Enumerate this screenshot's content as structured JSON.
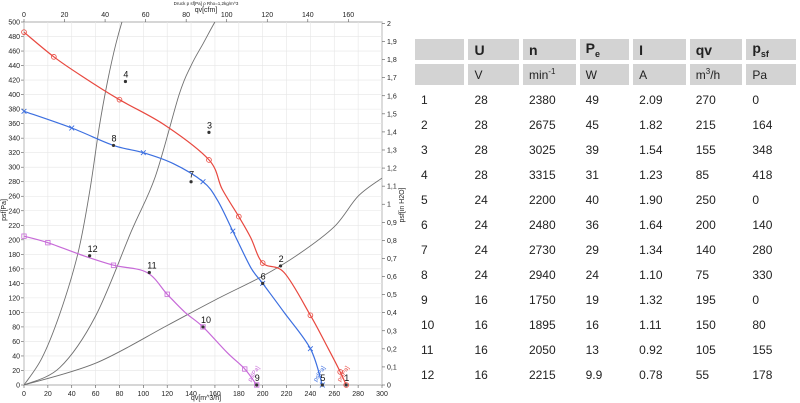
{
  "chart_data": {
    "type": "line",
    "title": "Druck p sf[Pa] ρ Rho=1,2kg/m^3",
    "x_bottom": {
      "label": "qv[m^3/h]",
      "range": [
        0,
        300
      ],
      "ticks": [
        0,
        20,
        40,
        60,
        80,
        100,
        120,
        140,
        160,
        180,
        200,
        220,
        240,
        260,
        280,
        300
      ]
    },
    "x_top": {
      "label": "qv[cfm]",
      "range": [
        0,
        176.6
      ],
      "ticks": [
        0,
        20,
        40,
        60,
        80,
        100,
        120,
        140,
        160
      ]
    },
    "y_left": {
      "label": "psf[Pa]",
      "range": [
        0,
        500
      ],
      "ticks": [
        0,
        20,
        40,
        60,
        80,
        100,
        120,
        140,
        160,
        180,
        200,
        220,
        240,
        260,
        280,
        300,
        320,
        340,
        360,
        380,
        400,
        420,
        440,
        460,
        480,
        500
      ]
    },
    "y_right": {
      "label": "psf[in H2O]",
      "range": [
        0,
        2.008
      ],
      "ticks": [
        "0",
        "0,1",
        "0,2",
        "0,3",
        "0,4",
        "0,5",
        "0,6",
        "0,7",
        "0,8",
        "0,9",
        "1",
        "1,1",
        "1,2",
        "1,3",
        "1,4",
        "1,5",
        "1,6",
        "1,7",
        "1,8",
        "1,9",
        "2"
      ]
    },
    "grid": true,
    "series": [
      {
        "name": "28 V",
        "color": "#e8483f",
        "marker": "circle",
        "x": [
          0,
          25,
          48,
          80,
          118,
          155,
          166,
          180,
          190,
          200,
          218,
          240,
          255,
          265,
          270
        ],
        "y": [
          486,
          452,
          426,
          393,
          358,
          310,
          270,
          232,
          203,
          168,
          155,
          96,
          50,
          18,
          0
        ]
      },
      {
        "name": "24 V",
        "color": "#3c6fe0",
        "marker": "x",
        "x": [
          0,
          40,
          75,
          100,
          125,
          150,
          162,
          175,
          190,
          200,
          218,
          240,
          250
        ],
        "y": [
          377,
          354,
          330,
          320,
          305,
          280,
          255,
          212,
          162,
          140,
          100,
          50,
          0
        ]
      },
      {
        "name": "16 V",
        "color": "#c76ad8",
        "marker": "square",
        "x": [
          0,
          20,
          50,
          75,
          103,
          120,
          135,
          150,
          170,
          185,
          195
        ],
        "y": [
          205,
          196,
          178,
          165,
          155,
          125,
          100,
          80,
          45,
          22,
          0
        ]
      }
    ],
    "system_curves": [
      {
        "x": [
          0,
          15,
          30,
          45,
          55,
          63,
          70,
          77,
          84,
          91
        ],
        "y": [
          0,
          37,
          98,
          180,
          266,
          355,
          418,
          470,
          510,
          540
        ]
      },
      {
        "x": [
          0,
          30,
          60,
          90,
          110,
          130,
          140,
          150,
          160,
          170
        ],
        "y": [
          0,
          24,
          95,
          212,
          287,
          400,
          440,
          470,
          500,
          525
        ]
      },
      {
        "x": [
          0,
          60,
          120,
          160,
          200,
          230,
          260,
          280,
          300
        ],
        "y": [
          0,
          30,
          82,
          117,
          150,
          180,
          218,
          260,
          285
        ]
      }
    ],
    "point_labels": [
      {
        "label": "1",
        "x": 270,
        "y": 0
      },
      {
        "label": "2",
        "x": 215,
        "y": 164
      },
      {
        "label": "3",
        "x": 155,
        "y": 348
      },
      {
        "label": "4",
        "x": 85,
        "y": 418
      },
      {
        "label": "5",
        "x": 250,
        "y": 0
      },
      {
        "label": "6",
        "x": 200,
        "y": 140
      },
      {
        "label": "7",
        "x": 140,
        "y": 280
      },
      {
        "label": "8",
        "x": 75,
        "y": 330
      },
      {
        "label": "9",
        "x": 195,
        "y": 0
      },
      {
        "label": "10",
        "x": 150,
        "y": 80
      },
      {
        "label": "11",
        "x": 105,
        "y": 155
      },
      {
        "label": "12",
        "x": 55,
        "y": 178
      }
    ],
    "curve_labels": [
      "ps[Pa]",
      "ps[Pa]",
      "ps[Pa]"
    ]
  },
  "table": {
    "headers": [
      "",
      "U",
      "n",
      "Pe",
      "I",
      "qv",
      "psf"
    ],
    "units": [
      "",
      "V",
      "min-1",
      "W",
      "A",
      "m3/h",
      "Pa"
    ],
    "rows": [
      [
        "1",
        "28",
        "2380",
        "49",
        "2.09",
        "270",
        "0"
      ],
      [
        "2",
        "28",
        "2675",
        "45",
        "1.82",
        "215",
        "164"
      ],
      [
        "3",
        "28",
        "3025",
        "39",
        "1.54",
        "155",
        "348"
      ],
      [
        "4",
        "28",
        "3315",
        "31",
        "1.23",
        "85",
        "418"
      ],
      [
        "5",
        "24",
        "2200",
        "40",
        "1.90",
        "250",
        "0"
      ],
      [
        "6",
        "24",
        "2480",
        "36",
        "1.64",
        "200",
        "140"
      ],
      [
        "7",
        "24",
        "2730",
        "29",
        "1.34",
        "140",
        "280"
      ],
      [
        "8",
        "24",
        "2940",
        "24",
        "1.10",
        "75",
        "330"
      ],
      [
        "9",
        "16",
        "1750",
        "19",
        "1.32",
        "195",
        "0"
      ],
      [
        "10",
        "16",
        "1895",
        "16",
        "1.11",
        "150",
        "80"
      ],
      [
        "11",
        "16",
        "2050",
        "13",
        "0.92",
        "105",
        "155"
      ],
      [
        "12",
        "16",
        "2215",
        "9.9",
        "0.78",
        "55",
        "178"
      ]
    ]
  }
}
